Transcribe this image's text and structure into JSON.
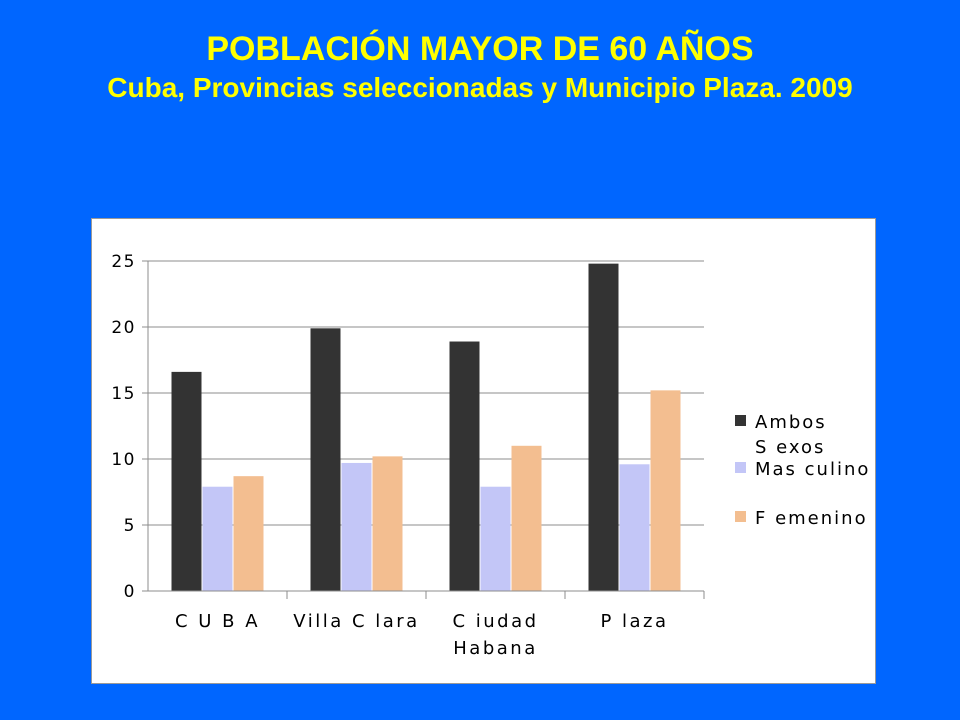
{
  "title": {
    "main": "POBLACIÓN MAYOR DE 60 AÑOS",
    "sub": "Cuba, Provincias seleccionadas y Municipio Plaza. 2009"
  },
  "chart_data": {
    "type": "bar",
    "title": "POBLACIÓN MAYOR DE 60 AÑOS",
    "subtitle": "Cuba, Provincias seleccionadas y Municipio Plaza. 2009",
    "categories": [
      {
        "label": "CUBA",
        "lines": [
          "C U B A"
        ]
      },
      {
        "label": "Villa Clara",
        "lines": [
          "Villa C lara"
        ]
      },
      {
        "label": "Ciudad Habana",
        "lines": [
          "C iudad",
          "Habana"
        ]
      },
      {
        "label": "Plaza",
        "lines": [
          "P laza"
        ]
      }
    ],
    "series": [
      {
        "name": "Ambos Sexos",
        "legend_lines": [
          "Ambos",
          "S exos"
        ],
        "color": "#333333",
        "values": [
          16.6,
          19.9,
          18.9,
          24.8
        ]
      },
      {
        "name": "Masculino",
        "legend_lines": [
          "Mas culino"
        ],
        "color": "#c3c6f7",
        "values": [
          7.9,
          9.7,
          7.9,
          9.6
        ]
      },
      {
        "name": "Femenino",
        "legend_lines": [
          "F emenino"
        ],
        "color": "#f3be90",
        "values": [
          8.7,
          10.2,
          11.0,
          15.2
        ]
      }
    ],
    "ylim": [
      0,
      25
    ],
    "yticks": [
      0,
      5,
      10,
      15,
      20,
      25
    ],
    "xlabel": "",
    "ylabel": "",
    "grid": true,
    "legend_position": "right"
  }
}
